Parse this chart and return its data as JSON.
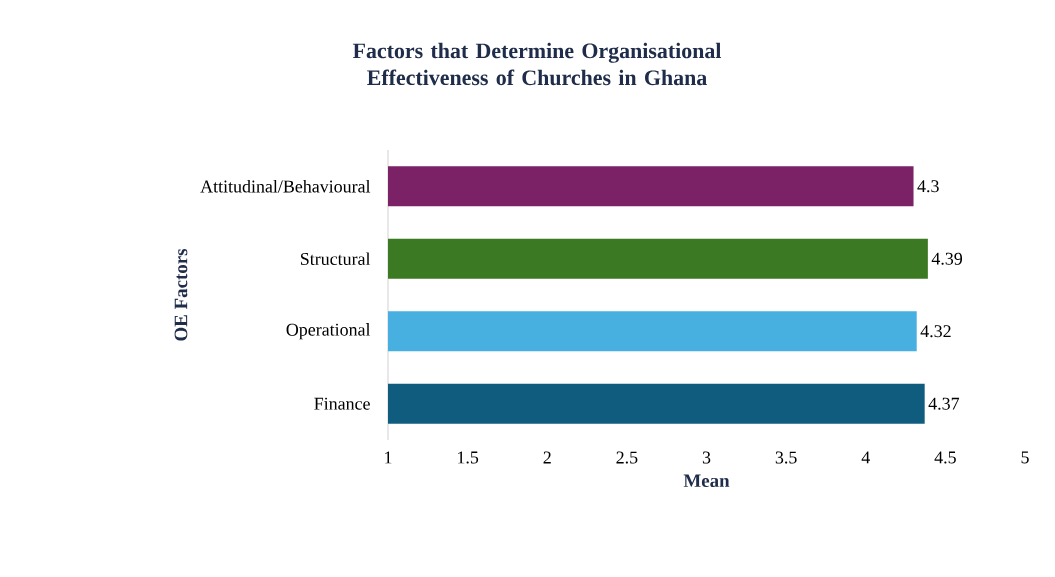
{
  "chart_data": {
    "type": "bar",
    "orientation": "horizontal",
    "title": "Factors that Determine Organisational Effectiveness of Churches in Ghana",
    "xlabel": "Mean",
    "ylabel": "OE Factors",
    "categories": [
      "Attitudinal/Behavioural",
      "Structural",
      "Operational",
      "Finance"
    ],
    "values": [
      4.3,
      4.39,
      4.32,
      4.37
    ],
    "colors": [
      "#7b2166",
      "#3b7a23",
      "#47b0e0",
      "#105c7f"
    ],
    "xlim": [
      1,
      5
    ],
    "xticks": [
      1,
      1.5,
      2,
      2.5,
      3,
      3.5,
      4,
      4.5,
      5
    ],
    "data_labels": true,
    "grid": false
  }
}
